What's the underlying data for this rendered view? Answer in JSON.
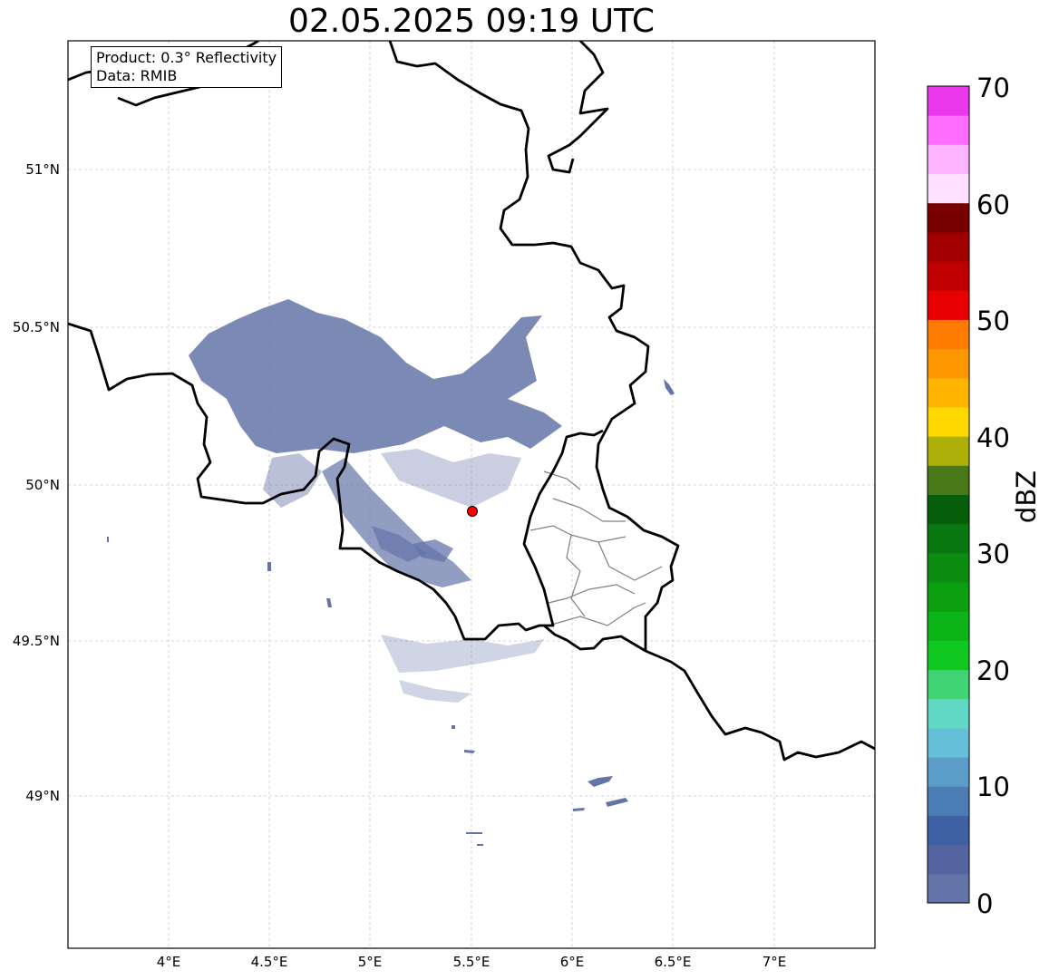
{
  "title": "02.05.2025 09:19 UTC",
  "info_box": {
    "product": "Product: 0.3° Reflectivity",
    "source": "Data: RMIB"
  },
  "axes": {
    "lon_ticks": [
      "4°E",
      "4.5°E",
      "5°E",
      "5.5°E",
      "6°E",
      "6.5°E",
      "7°E"
    ],
    "lat_ticks": [
      "51°N",
      "50.5°N",
      "50°N",
      "49.5°N",
      "49°N"
    ]
  },
  "colorbar": {
    "label": "dBZ",
    "tick_labels": [
      "0",
      "10",
      "20",
      "30",
      "40",
      "50",
      "60",
      "70"
    ],
    "colors": [
      "#6474a8",
      "#5464a0",
      "#4060a4",
      "#4c7cb4",
      "#5c9cc8",
      "#64c0d8",
      "#60d8c4",
      "#40d474",
      "#10c820",
      "#0cb418",
      "#0ca010",
      "#0c8c10",
      "#0a7810",
      "#065e0a",
      "#487818",
      "#acb008",
      "#ffd800",
      "#ffb400",
      "#ff9800",
      "#ff7c00",
      "#e80000",
      "#c00000",
      "#a00000",
      "#780000",
      "#ffe0ff",
      "#ffb4ff",
      "#ff6cff",
      "#ec38ec"
    ]
  },
  "radar": {
    "marker_color": "#ff0000",
    "echo_color": "#6474a8"
  }
}
